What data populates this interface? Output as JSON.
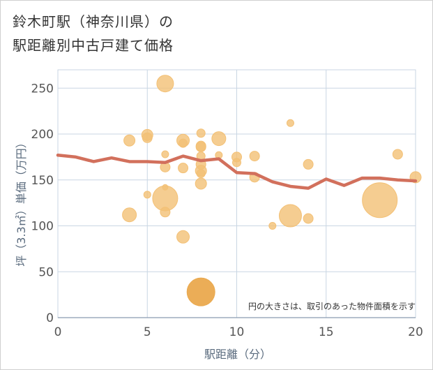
{
  "title_line1": "鈴木町駅（神奈川県）の",
  "title_line2": "駅距離別中古戸建て価格",
  "colors": {
    "bubble": "#f3c075",
    "bubble_highlight": "#eaa94e",
    "line": "#d2705c",
    "grid": "#c9d6e3",
    "axis_text": "#555555"
  },
  "chart_data": {
    "type": "scatter",
    "xlabel": "駅距離（分）",
    "ylabel": "坪（3.3㎡）単価（万円）",
    "xlim": [
      0,
      20
    ],
    "ylim": [
      0,
      270
    ],
    "x_ticks": [
      0,
      5,
      10,
      15,
      20
    ],
    "y_ticks": [
      0,
      50,
      100,
      150,
      200,
      250
    ],
    "grid": true,
    "annotation": "円の大きさは、取引のあった物件面積を示す",
    "points": [
      {
        "x": 4,
        "y": 193,
        "size": 8
      },
      {
        "x": 4,
        "y": 112,
        "size": 10
      },
      {
        "x": 5,
        "y": 199,
        "size": 8
      },
      {
        "x": 5,
        "y": 196,
        "size": 7
      },
      {
        "x": 5,
        "y": 134,
        "size": 5
      },
      {
        "x": 6,
        "y": 255,
        "size": 12
      },
      {
        "x": 6,
        "y": 178,
        "size": 5
      },
      {
        "x": 6,
        "y": 164,
        "size": 7
      },
      {
        "x": 6,
        "y": 142,
        "size": 4
      },
      {
        "x": 6,
        "y": 130,
        "size": 18
      },
      {
        "x": 6,
        "y": 115,
        "size": 7
      },
      {
        "x": 7,
        "y": 193,
        "size": 9
      },
      {
        "x": 7,
        "y": 190,
        "size": 6
      },
      {
        "x": 7,
        "y": 163,
        "size": 7
      },
      {
        "x": 7,
        "y": 88,
        "size": 9
      },
      {
        "x": 8,
        "y": 201,
        "size": 6
      },
      {
        "x": 8,
        "y": 187,
        "size": 7
      },
      {
        "x": 8,
        "y": 186,
        "size": 7
      },
      {
        "x": 8,
        "y": 176,
        "size": 6
      },
      {
        "x": 8,
        "y": 167,
        "size": 7
      },
      {
        "x": 8,
        "y": 160,
        "size": 8
      },
      {
        "x": 8,
        "y": 157,
        "size": 6
      },
      {
        "x": 8,
        "y": 146,
        "size": 8
      },
      {
        "x": 8,
        "y": 28,
        "size": 20,
        "highlight": true
      },
      {
        "x": 9,
        "y": 195,
        "size": 10
      },
      {
        "x": 9,
        "y": 177,
        "size": 5
      },
      {
        "x": 10,
        "y": 175,
        "size": 7
      },
      {
        "x": 10,
        "y": 169,
        "size": 6
      },
      {
        "x": 11,
        "y": 176,
        "size": 7
      },
      {
        "x": 11,
        "y": 153,
        "size": 7
      },
      {
        "x": 12,
        "y": 100,
        "size": 5
      },
      {
        "x": 13,
        "y": 212,
        "size": 5
      },
      {
        "x": 13,
        "y": 111,
        "size": 16
      },
      {
        "x": 14,
        "y": 167,
        "size": 7
      },
      {
        "x": 14,
        "y": 108,
        "size": 7
      },
      {
        "x": 18,
        "y": 128,
        "size": 25
      },
      {
        "x": 19,
        "y": 178,
        "size": 7
      },
      {
        "x": 20,
        "y": 153,
        "size": 8
      }
    ],
    "series": [
      {
        "type": "line",
        "x": [
          0,
          1,
          2,
          3,
          4,
          5,
          6,
          7,
          8,
          9,
          10,
          11,
          12,
          13,
          14,
          15,
          16,
          17,
          18,
          19,
          20
        ],
        "values": [
          177,
          175,
          170,
          174,
          170,
          170,
          169,
          176,
          171,
          173,
          158,
          157,
          148,
          143,
          141,
          151,
          144,
          152,
          152,
          150,
          149
        ]
      }
    ]
  }
}
